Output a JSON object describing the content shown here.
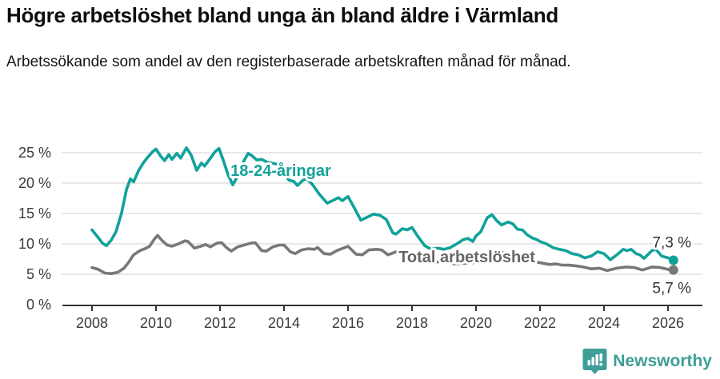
{
  "header": {
    "title": "Högre arbetslöshet bland unga än bland äldre i Värmland",
    "subtitle": "Arbetssökande som andel av den registerbaserade arbetskraften månad för månad."
  },
  "chart_data": {
    "type": "line",
    "title": "Högre arbetslöshet bland unga än bland äldre i Värmland",
    "subtitle": "Arbetssökande som andel av den registerbaserade arbetskraften månad för månad.",
    "xlabel": "",
    "ylabel": "",
    "y_tick_suffix": " %",
    "y_ticks": [
      0,
      5,
      10,
      15,
      20,
      25
    ],
    "x_ticks": [
      2008,
      2010,
      2012,
      2014,
      2016,
      2018,
      2020,
      2022,
      2024,
      2026
    ],
    "ylim": [
      0,
      26.5
    ],
    "xlim": [
      2007.1,
      2027.1
    ],
    "grid": "horizontal",
    "legend_position": "inline-labels",
    "colors": {
      "young": "#10a29a",
      "total": "#787878",
      "grid": "#d9d9d9",
      "axis": "#333333",
      "tick_text": "#3a3a3a",
      "end_label_text": "#333333",
      "total_label_text": "#666666"
    },
    "series": [
      {
        "name": "Total arbetslöshet",
        "color_key": "total",
        "end_label": "5,7 %",
        "end_value": 5.7,
        "label_pos": {
          "x": 2017.58,
          "y_baseline_value": 7.0
        },
        "points": [
          [
            2008.0,
            6.1
          ],
          [
            2008.2,
            5.8
          ],
          [
            2008.4,
            5.2
          ],
          [
            2008.6,
            5.1
          ],
          [
            2008.8,
            5.3
          ],
          [
            2009.0,
            6.0
          ],
          [
            2009.15,
            7.0
          ],
          [
            2009.3,
            8.2
          ],
          [
            2009.5,
            8.9
          ],
          [
            2009.65,
            9.2
          ],
          [
            2009.8,
            9.6
          ],
          [
            2009.95,
            10.8
          ],
          [
            2010.05,
            11.4
          ],
          [
            2010.2,
            10.5
          ],
          [
            2010.35,
            9.8
          ],
          [
            2010.5,
            9.6
          ],
          [
            2010.7,
            10.0
          ],
          [
            2010.9,
            10.5
          ],
          [
            2011.0,
            10.4
          ],
          [
            2011.2,
            9.3
          ],
          [
            2011.4,
            9.6
          ],
          [
            2011.55,
            9.9
          ],
          [
            2011.7,
            9.5
          ],
          [
            2011.9,
            10.1
          ],
          [
            2012.05,
            10.2
          ],
          [
            2012.2,
            9.4
          ],
          [
            2012.35,
            8.8
          ],
          [
            2012.55,
            9.5
          ],
          [
            2012.75,
            9.8
          ],
          [
            2012.95,
            10.1
          ],
          [
            2013.1,
            10.2
          ],
          [
            2013.3,
            8.9
          ],
          [
            2013.45,
            8.8
          ],
          [
            2013.65,
            9.5
          ],
          [
            2013.85,
            9.8
          ],
          [
            2014.0,
            9.8
          ],
          [
            2014.2,
            8.7
          ],
          [
            2014.35,
            8.4
          ],
          [
            2014.55,
            9.0
          ],
          [
            2014.75,
            9.2
          ],
          [
            2014.95,
            9.1
          ],
          [
            2015.05,
            9.4
          ],
          [
            2015.25,
            8.4
          ],
          [
            2015.45,
            8.3
          ],
          [
            2015.65,
            8.9
          ],
          [
            2015.9,
            9.4
          ],
          [
            2016.0,
            9.6
          ],
          [
            2016.25,
            8.3
          ],
          [
            2016.45,
            8.2
          ],
          [
            2016.65,
            9.0
          ],
          [
            2016.9,
            9.1
          ],
          [
            2017.05,
            9.0
          ],
          [
            2017.25,
            8.2
          ],
          [
            2017.5,
            8.7
          ],
          [
            2017.7,
            8.5
          ],
          [
            2017.9,
            8.2
          ],
          [
            2018.1,
            7.8
          ],
          [
            2018.4,
            7.2
          ],
          [
            2018.7,
            7.0
          ],
          [
            2019.0,
            7.1
          ],
          [
            2019.3,
            6.7
          ],
          [
            2019.6,
            6.8
          ],
          [
            2019.9,
            6.9
          ],
          [
            2020.1,
            7.2
          ],
          [
            2020.4,
            8.6
          ],
          [
            2020.6,
            8.8
          ],
          [
            2020.8,
            8.6
          ],
          [
            2021.0,
            8.4
          ],
          [
            2021.3,
            7.8
          ],
          [
            2021.6,
            7.3
          ],
          [
            2021.9,
            7.0
          ],
          [
            2022.1,
            6.8
          ],
          [
            2022.3,
            6.6
          ],
          [
            2022.5,
            6.7
          ],
          [
            2022.7,
            6.5
          ],
          [
            2022.9,
            6.5
          ],
          [
            2023.1,
            6.4
          ],
          [
            2023.35,
            6.2
          ],
          [
            2023.6,
            5.9
          ],
          [
            2023.85,
            6.0
          ],
          [
            2024.1,
            5.6
          ],
          [
            2024.4,
            6.0
          ],
          [
            2024.7,
            6.2
          ],
          [
            2024.95,
            6.1
          ],
          [
            2025.2,
            5.7
          ],
          [
            2025.5,
            6.2
          ],
          [
            2025.75,
            6.1
          ],
          [
            2026.0,
            5.8
          ],
          [
            2026.17,
            5.7
          ]
        ]
      },
      {
        "name": "18-24-åringar",
        "color_key": "young",
        "end_label": "7,3 %",
        "end_value": 7.3,
        "label_pos": {
          "x": 2012.33,
          "y_baseline_value": 21.2
        },
        "points": [
          [
            2008.0,
            12.3
          ],
          [
            2008.17,
            11.2
          ],
          [
            2008.33,
            10.1
          ],
          [
            2008.45,
            9.7
          ],
          [
            2008.6,
            10.6
          ],
          [
            2008.75,
            12.0
          ],
          [
            2008.92,
            15.0
          ],
          [
            2009.08,
            19.0
          ],
          [
            2009.2,
            20.7
          ],
          [
            2009.3,
            20.2
          ],
          [
            2009.45,
            22.0
          ],
          [
            2009.6,
            23.3
          ],
          [
            2009.75,
            24.3
          ],
          [
            2009.9,
            25.2
          ],
          [
            2010.0,
            25.6
          ],
          [
            2010.15,
            24.4
          ],
          [
            2010.27,
            23.7
          ],
          [
            2010.4,
            24.7
          ],
          [
            2010.5,
            23.9
          ],
          [
            2010.65,
            24.9
          ],
          [
            2010.77,
            24.1
          ],
          [
            2010.95,
            25.8
          ],
          [
            2011.1,
            24.6
          ],
          [
            2011.27,
            22.1
          ],
          [
            2011.42,
            23.3
          ],
          [
            2011.52,
            22.8
          ],
          [
            2011.7,
            24.1
          ],
          [
            2011.85,
            25.2
          ],
          [
            2011.97,
            25.7
          ],
          [
            2012.1,
            23.8
          ],
          [
            2012.25,
            21.4
          ],
          [
            2012.4,
            19.7
          ],
          [
            2012.6,
            21.6
          ],
          [
            2012.75,
            23.7
          ],
          [
            2012.88,
            24.9
          ],
          [
            2013.0,
            24.5
          ],
          [
            2013.15,
            23.8
          ],
          [
            2013.3,
            23.9
          ],
          [
            2013.5,
            23.4
          ],
          [
            2013.8,
            23.1
          ],
          [
            2014.0,
            21.8
          ],
          [
            2014.15,
            20.5
          ],
          [
            2014.3,
            20.3
          ],
          [
            2014.42,
            19.6
          ],
          [
            2014.6,
            20.5
          ],
          [
            2014.72,
            20.7
          ],
          [
            2014.9,
            19.7
          ],
          [
            2015.1,
            18.2
          ],
          [
            2015.35,
            16.7
          ],
          [
            2015.55,
            17.2
          ],
          [
            2015.7,
            17.6
          ],
          [
            2015.82,
            17.1
          ],
          [
            2016.0,
            17.8
          ],
          [
            2016.2,
            15.9
          ],
          [
            2016.4,
            13.9
          ],
          [
            2016.6,
            14.4
          ],
          [
            2016.8,
            14.9
          ],
          [
            2017.0,
            14.7
          ],
          [
            2017.2,
            14.0
          ],
          [
            2017.4,
            11.8
          ],
          [
            2017.5,
            11.6
          ],
          [
            2017.7,
            12.5
          ],
          [
            2017.85,
            12.3
          ],
          [
            2018.0,
            12.7
          ],
          [
            2018.2,
            11.1
          ],
          [
            2018.4,
            9.7
          ],
          [
            2018.6,
            9.1
          ],
          [
            2018.8,
            9.3
          ],
          [
            2019.0,
            9.1
          ],
          [
            2019.2,
            9.4
          ],
          [
            2019.4,
            10.0
          ],
          [
            2019.6,
            10.7
          ],
          [
            2019.75,
            10.9
          ],
          [
            2019.9,
            10.4
          ],
          [
            2020.0,
            11.3
          ],
          [
            2020.15,
            12.0
          ],
          [
            2020.35,
            14.3
          ],
          [
            2020.5,
            14.8
          ],
          [
            2020.65,
            13.8
          ],
          [
            2020.8,
            13.1
          ],
          [
            2021.0,
            13.6
          ],
          [
            2021.15,
            13.3
          ],
          [
            2021.3,
            12.4
          ],
          [
            2021.45,
            12.3
          ],
          [
            2021.6,
            11.5
          ],
          [
            2021.75,
            11.0
          ],
          [
            2021.9,
            10.7
          ],
          [
            2022.0,
            10.4
          ],
          [
            2022.2,
            10.0
          ],
          [
            2022.4,
            9.4
          ],
          [
            2022.6,
            9.1
          ],
          [
            2022.8,
            8.9
          ],
          [
            2023.0,
            8.4
          ],
          [
            2023.2,
            8.2
          ],
          [
            2023.4,
            7.7
          ],
          [
            2023.6,
            8.0
          ],
          [
            2023.8,
            8.7
          ],
          [
            2024.0,
            8.4
          ],
          [
            2024.2,
            7.4
          ],
          [
            2024.45,
            8.4
          ],
          [
            2024.6,
            9.1
          ],
          [
            2024.72,
            8.9
          ],
          [
            2024.85,
            9.1
          ],
          [
            2025.0,
            8.4
          ],
          [
            2025.12,
            8.2
          ],
          [
            2025.25,
            7.6
          ],
          [
            2025.5,
            8.9
          ],
          [
            2025.62,
            9.1
          ],
          [
            2025.8,
            8.0
          ],
          [
            2026.0,
            7.7
          ],
          [
            2026.17,
            7.3
          ]
        ]
      }
    ]
  },
  "footer": {
    "brand_label": "Newsworthy",
    "brand_color": "#3f9e97",
    "logo_icon": "bar-chart-speech-bubble-icon"
  }
}
